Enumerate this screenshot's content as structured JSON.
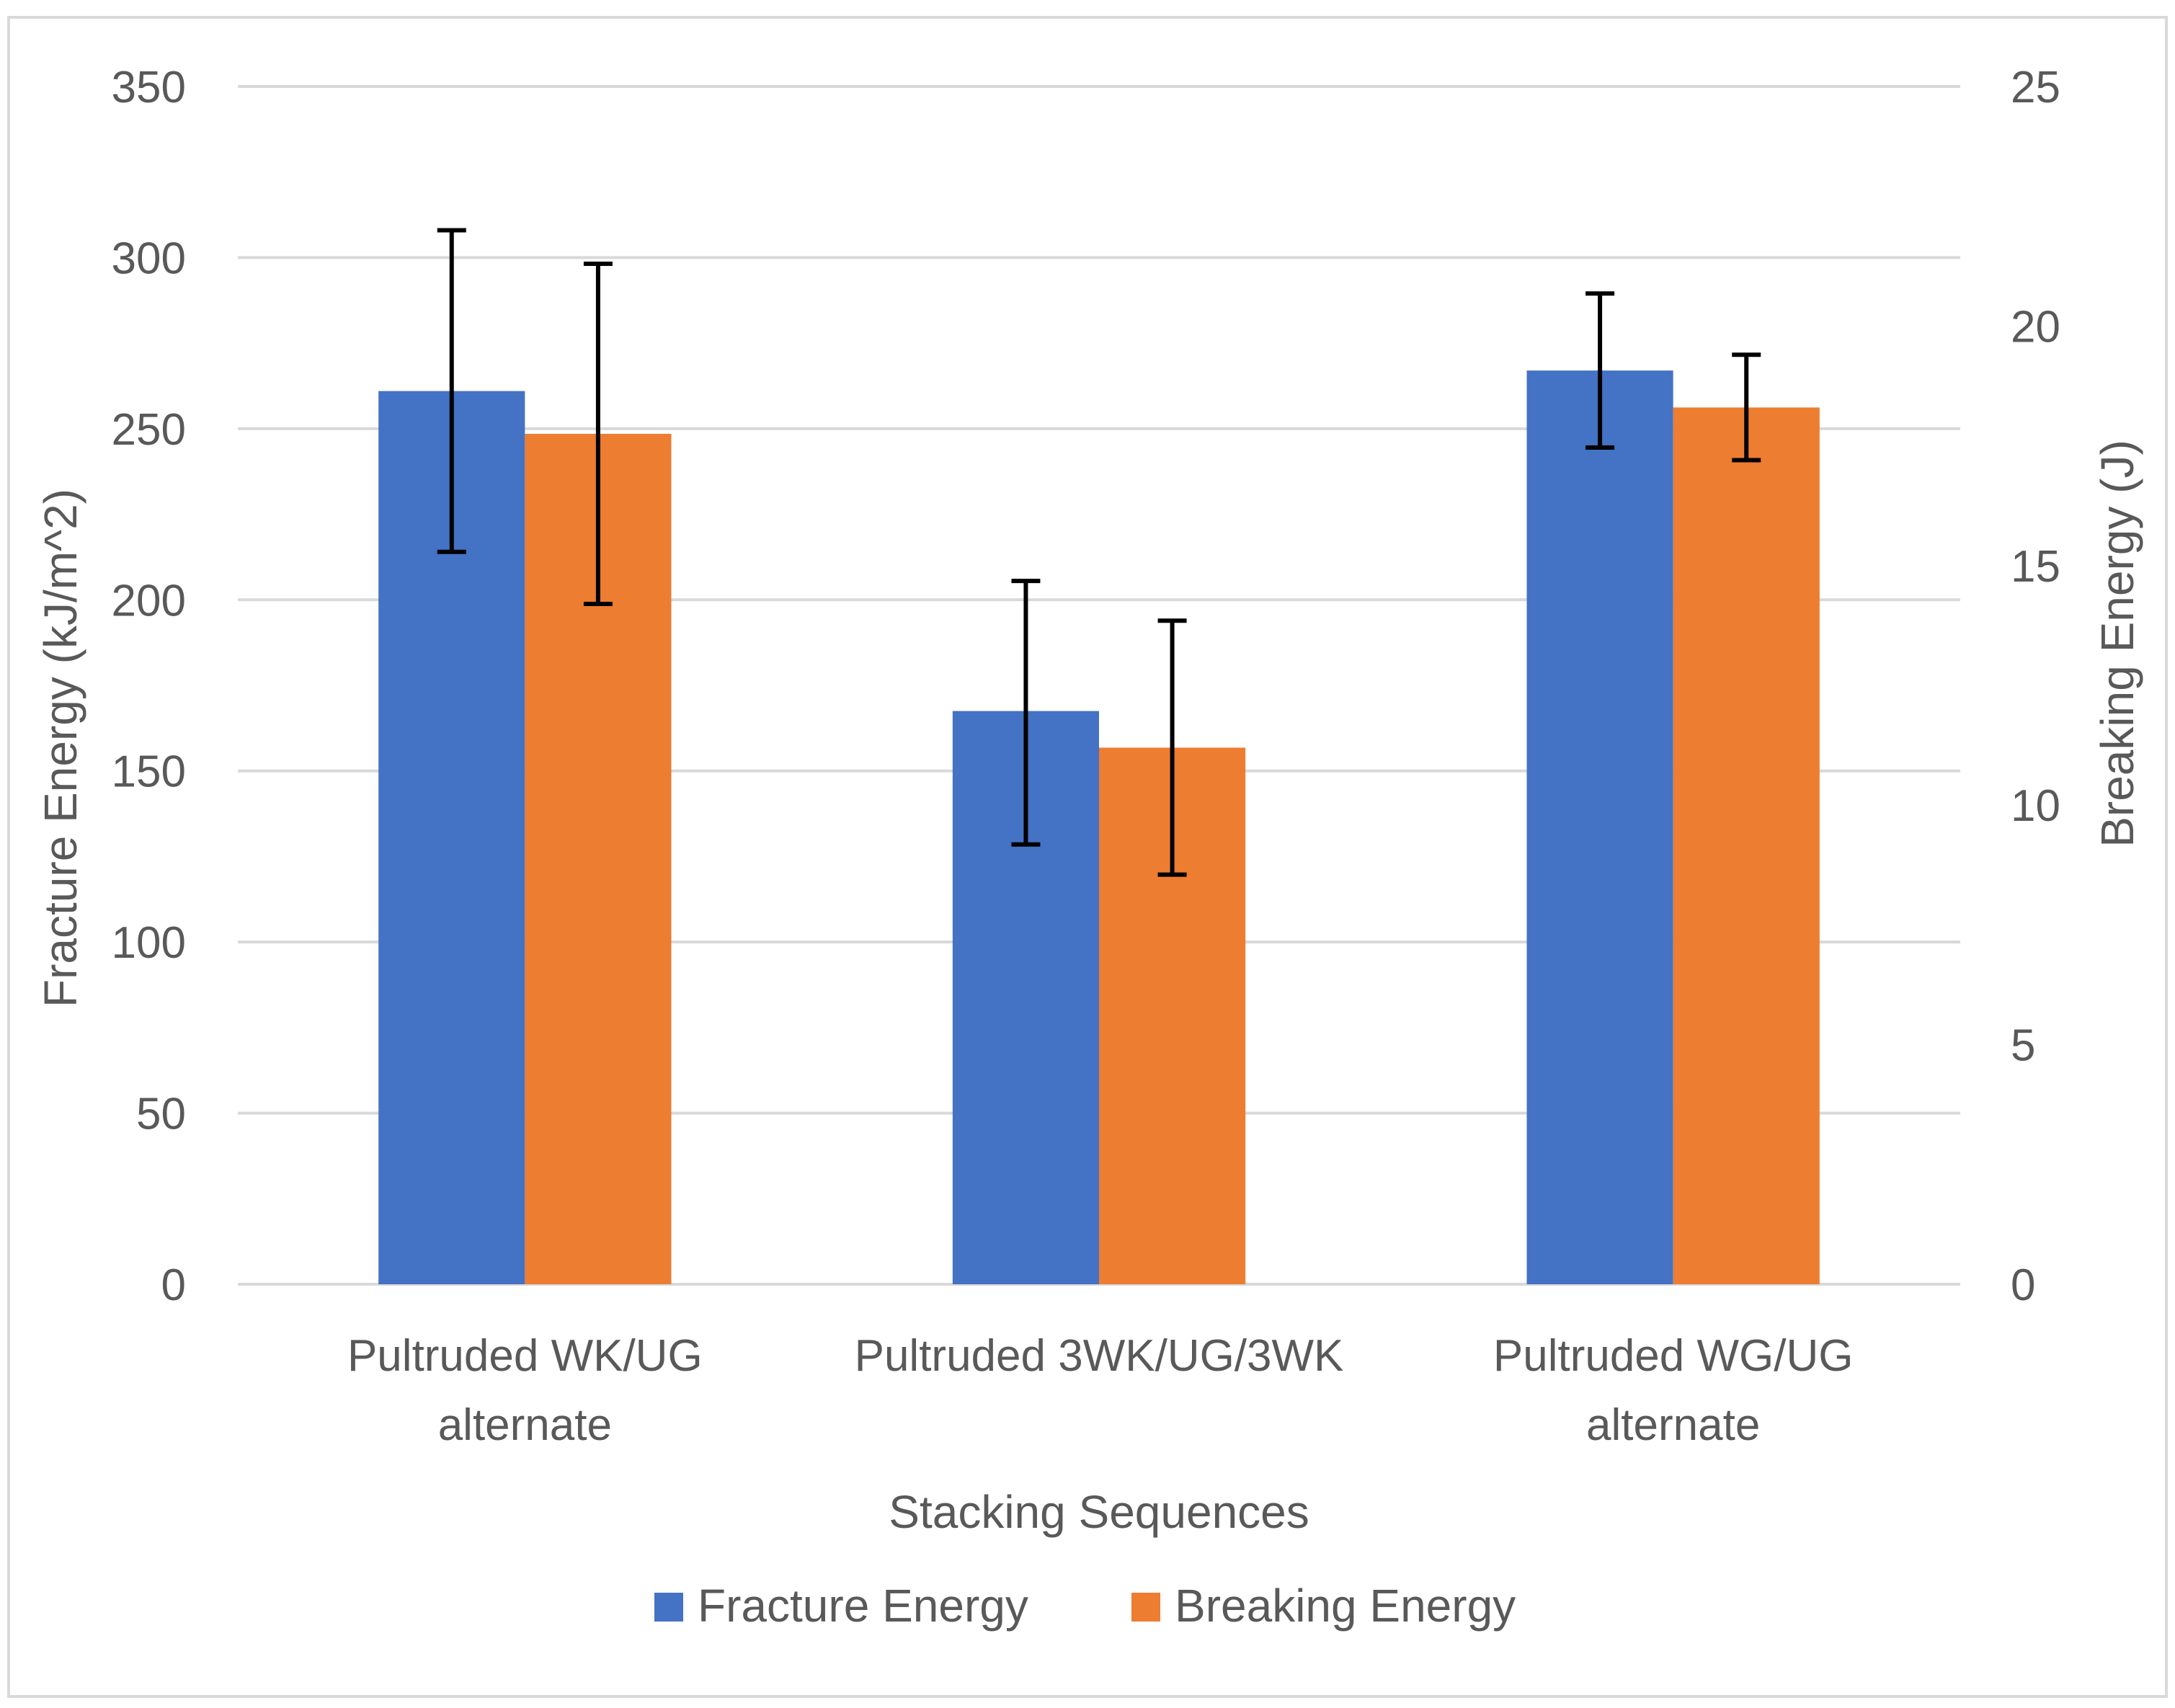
{
  "chart_data": {
    "type": "bar",
    "title": "",
    "xlabel": "Stacking Sequences",
    "ylabel": "Fracture Energy (kJ/m^2)",
    "y2label": "Breaking Energy (J)",
    "ylim": [
      0,
      350
    ],
    "y2lim": [
      0,
      25
    ],
    "yticks": [
      "0",
      "50",
      "100",
      "150",
      "200",
      "250",
      "300",
      "350"
    ],
    "y2ticks": [
      "0",
      "5",
      "10",
      "15",
      "20",
      "25"
    ],
    "grid": true,
    "legend_position": "bottom",
    "categories": [
      [
        "Pultruded WK/UG",
        "alternate"
      ],
      [
        "Pultruded 3WK/UG/3WK"
      ],
      [
        "Pultruded WG/UG",
        "alternate"
      ]
    ],
    "series": [
      {
        "name": "Fracture Energy",
        "axis": "left",
        "color": "#4472c4",
        "values": [
          261,
          167.5,
          267
        ],
        "err_low": [
          214,
          128.5,
          244.5
        ],
        "err_high": [
          308,
          205.5,
          289.5
        ]
      },
      {
        "name": "Breaking Energy",
        "axis": "right",
        "color": "#ed7d31",
        "values": [
          17.75,
          11.2,
          18.3
        ],
        "err_low": [
          14.2,
          8.55,
          17.2
        ],
        "err_high": [
          21.3,
          13.85,
          19.4
        ]
      }
    ]
  },
  "colors": {
    "grid": "#d9d9d9",
    "text": "#595959",
    "border": "#d9d9d9",
    "errorbar": "#000000"
  }
}
